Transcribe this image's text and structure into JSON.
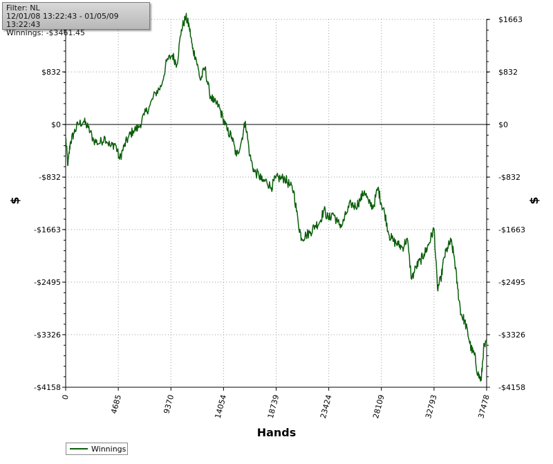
{
  "info": {
    "filter": "Filter: NL",
    "dates": "12/01/08 13:22:43 - 01/05/09 13:22:43",
    "winnings": "Winnings: -$3461.45"
  },
  "legend": {
    "label": "Winnings"
  },
  "colors": {
    "series": "#0b5e0b",
    "grid": "#9a9a9a",
    "zero_line": "#000000"
  },
  "chart_data": {
    "type": "line",
    "xlabel": "Hands",
    "ylabel": "$",
    "xlim": [
      0,
      37478
    ],
    "ylim": [
      -4158,
      1663
    ],
    "x_ticks": [
      0,
      4685,
      9370,
      14054,
      18739,
      23424,
      28109,
      32793,
      37478
    ],
    "x_tick_labels": [
      "0",
      "4685",
      "9370",
      "14054",
      "18739",
      "23424",
      "28109",
      "32793",
      "37478"
    ],
    "y_ticks": [
      1663,
      832,
      0,
      -832,
      -1663,
      -2495,
      -3326,
      -4158
    ],
    "y_tick_labels": [
      "$1663",
      "$832",
      "$0",
      "-$832",
      "-$1663",
      "-$2495",
      "-$3326",
      "-$4158"
    ],
    "grid": true,
    "legend_position": "bottom-left",
    "series": [
      {
        "name": "Winnings",
        "x": [
          0,
          200,
          400,
          700,
          1100,
          1600,
          2000,
          2500,
          3000,
          3500,
          4000,
          4400,
          4800,
          5200,
          5600,
          6000,
          6500,
          7000,
          7500,
          8000,
          8500,
          9000,
          9500,
          9900,
          10300,
          10700,
          11000,
          11300,
          11600,
          12000,
          12400,
          12800,
          13200,
          13600,
          14000,
          14400,
          14800,
          15200,
          15600,
          16000,
          16400,
          16800,
          17200,
          17500,
          17900,
          18300,
          18700,
          19100,
          19500,
          19900,
          20300,
          20700,
          21000,
          21400,
          21800,
          22200,
          22600,
          23000,
          23400,
          23800,
          24200,
          24600,
          25000,
          25400,
          25800,
          26200,
          26600,
          27000,
          27400,
          27800,
          28100,
          28400,
          28800,
          29200,
          29600,
          30000,
          30400,
          30800,
          31200,
          31600,
          31900,
          32200,
          32500,
          32800,
          33100,
          33400,
          33700,
          34000,
          34300,
          34600,
          34900,
          35200,
          35500,
          35800,
          36100,
          36400,
          36700,
          37000,
          37200,
          37478
        ],
        "values": [
          -200,
          -650,
          -300,
          -150,
          0,
          50,
          -50,
          -250,
          -300,
          -200,
          -350,
          -300,
          -550,
          -350,
          -200,
          -100,
          -50,
          150,
          300,
          500,
          600,
          1000,
          1100,
          950,
          1500,
          1700,
          1550,
          1200,
          1050,
          700,
          900,
          500,
          350,
          300,
          100,
          -100,
          -200,
          -500,
          -300,
          50,
          -500,
          -750,
          -800,
          -900,
          -900,
          -1000,
          -850,
          -850,
          -850,
          -950,
          -1050,
          -1550,
          -1800,
          -1750,
          -1700,
          -1600,
          -1550,
          -1350,
          -1500,
          -1400,
          -1550,
          -1600,
          -1400,
          -1250,
          -1300,
          -1200,
          -1050,
          -1250,
          -1300,
          -1000,
          -1250,
          -1400,
          -1750,
          -1850,
          -1900,
          -1950,
          -1800,
          -2450,
          -2250,
          -2150,
          -2050,
          -1950,
          -1800,
          -1650,
          -2600,
          -2450,
          -2100,
          -1950,
          -1850,
          -2100,
          -2600,
          -3000,
          -3100,
          -3300,
          -3550,
          -3650,
          -3950,
          -4050,
          -3550,
          -3461
        ]
      }
    ]
  }
}
